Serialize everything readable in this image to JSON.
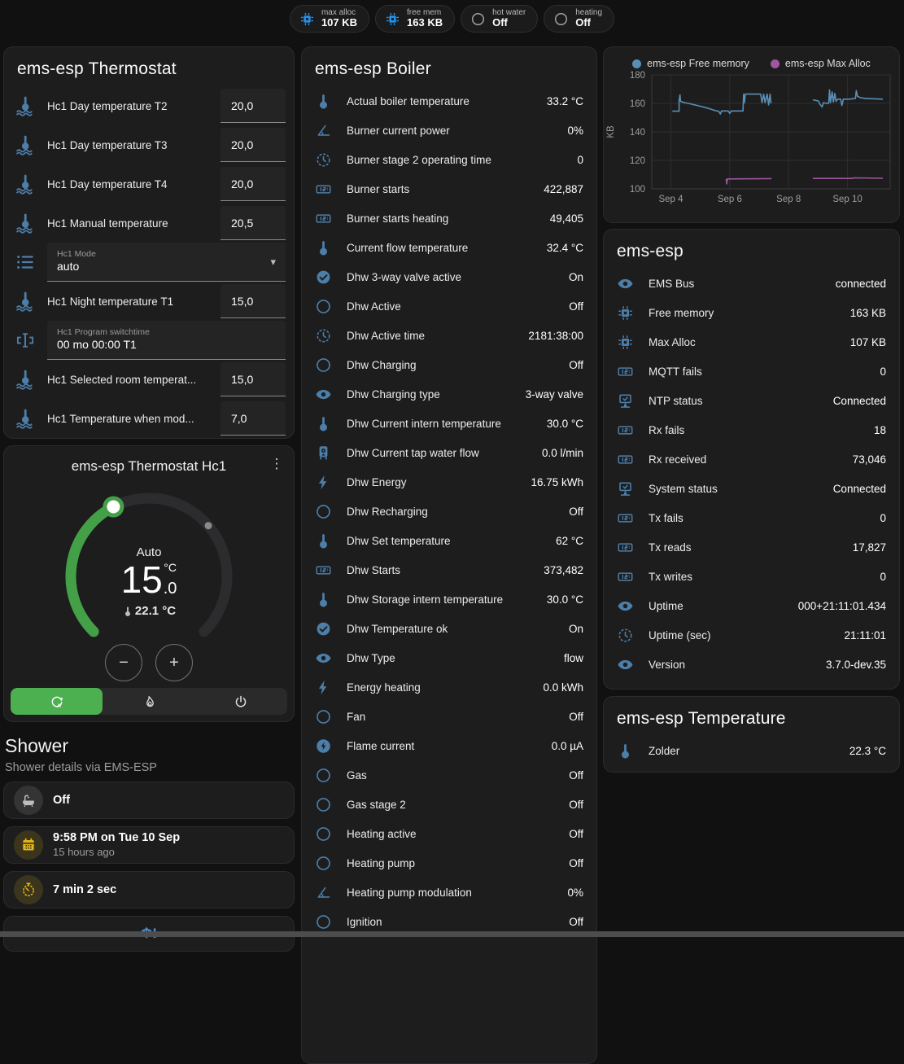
{
  "icons": {
    "kebab": "⋮",
    "caret": "▾",
    "minus": "−",
    "plus": "+",
    "snowflake_alert": "❄!"
  },
  "colors": {
    "accent_green": "#4caf50",
    "icon_blue": "#4d7ea8",
    "badge_blue": "#2196f3",
    "yellow": "#e0b517",
    "snow_blue": "#5596d8"
  },
  "badges": [
    {
      "label": "max alloc",
      "value": "107 KB",
      "icon": "chip",
      "color": "blue"
    },
    {
      "label": "free mem",
      "value": "163 KB",
      "icon": "chip",
      "color": "blue"
    },
    {
      "label": "hot water",
      "value": "Off",
      "icon": "circle",
      "color": "gray"
    },
    {
      "label": "heating",
      "value": "Off",
      "icon": "circle",
      "color": "gray"
    }
  ],
  "thermostat_card": {
    "title": "ems-esp Thermostat",
    "rows": [
      {
        "type": "number",
        "icon": "thermo-water",
        "label": "Hc1 Day temperature T2",
        "value": "20,0"
      },
      {
        "type": "number",
        "icon": "thermo-water",
        "label": "Hc1 Day temperature T3",
        "value": "20,0"
      },
      {
        "type": "number",
        "icon": "thermo-water",
        "label": "Hc1 Day temperature T4",
        "value": "20,0"
      },
      {
        "type": "number",
        "icon": "thermo-water",
        "label": "Hc1 Manual temperature",
        "value": "20,5"
      },
      {
        "type": "select",
        "icon": "list",
        "label": "Hc1 Mode",
        "value": "auto"
      },
      {
        "type": "number",
        "icon": "thermo-water",
        "label": "Hc1 Night temperature T1",
        "value": "15,0"
      },
      {
        "type": "text",
        "icon": "valve",
        "label": "Hc1 Program switchtime",
        "value": "00 mo 00:00 T1"
      },
      {
        "type": "number",
        "icon": "thermo-water",
        "label": "Hc1 Selected room temperat...",
        "value": "15,0"
      },
      {
        "type": "number",
        "icon": "thermo-water",
        "label": "Hc1 Temperature when mod...",
        "value": "7,0"
      }
    ]
  },
  "hc1_card": {
    "title": "ems-esp Thermostat Hc1",
    "mode_label": "Auto",
    "target_int": "15",
    "target_frac": ".0",
    "target_unit": "°C",
    "current": "22.1 °C",
    "modes": [
      {
        "icon": "auto",
        "active": true
      },
      {
        "icon": "flame",
        "active": false
      },
      {
        "icon": "power",
        "active": false
      }
    ]
  },
  "shower": {
    "title": "Shower",
    "subtitle": "Shower details via EMS-ESP",
    "tiles": [
      {
        "icon": "bathtub",
        "color": "gray",
        "primary": "Off"
      },
      {
        "icon": "calendar",
        "color": "yellow",
        "primary": "9:58 PM on Tue 10 Sep",
        "secondary": "15 hours ago"
      },
      {
        "icon": "timer",
        "color": "yellow",
        "primary": "7 min 2 sec"
      },
      {
        "icon": "snowflake-alert",
        "color": "blue",
        "centered": true
      }
    ]
  },
  "boiler_card": {
    "title": "ems-esp Boiler",
    "rows": [
      {
        "icon": "thermometer",
        "label": "Actual boiler temperature",
        "value": "33.2 °C"
      },
      {
        "icon": "angle",
        "label": "Burner current power",
        "value": "0%"
      },
      {
        "icon": "clock",
        "label": "Burner stage 2 operating time",
        "value": "0"
      },
      {
        "icon": "counter",
        "label": "Burner starts",
        "value": "422,887"
      },
      {
        "icon": "counter",
        "label": "Burner starts heating",
        "value": "49,405"
      },
      {
        "icon": "thermometer",
        "label": "Current flow temperature",
        "value": "32.4 °C"
      },
      {
        "icon": "check-circle",
        "label": "Dhw 3-way valve active",
        "value": "On"
      },
      {
        "icon": "circle",
        "label": "Dhw Active",
        "value": "Off"
      },
      {
        "icon": "clock",
        "label": "Dhw Active time",
        "value": "2181:38:00"
      },
      {
        "icon": "circle",
        "label": "Dhw Charging",
        "value": "Off"
      },
      {
        "icon": "eye",
        "label": "Dhw Charging type",
        "value": "3-way valve"
      },
      {
        "icon": "thermometer",
        "label": "Dhw Current intern temperature",
        "value": "30.0 °C"
      },
      {
        "icon": "water-boiler",
        "label": "Dhw Current tap water flow",
        "value": "0.0 l/min"
      },
      {
        "icon": "lightning",
        "label": "Dhw Energy",
        "value": "16.75 kWh"
      },
      {
        "icon": "circle",
        "label": "Dhw Recharging",
        "value": "Off"
      },
      {
        "icon": "thermometer",
        "label": "Dhw Set temperature",
        "value": "62 °C"
      },
      {
        "icon": "counter",
        "label": "Dhw Starts",
        "value": "373,482"
      },
      {
        "icon": "thermometer",
        "label": "Dhw Storage intern temperature",
        "value": "30.0 °C"
      },
      {
        "icon": "check-circle",
        "label": "Dhw Temperature ok",
        "value": "On"
      },
      {
        "icon": "eye",
        "label": "Dhw Type",
        "value": "flow"
      },
      {
        "icon": "lightning",
        "label": "Energy heating",
        "value": "0.0 kWh"
      },
      {
        "icon": "circle",
        "label": "Fan",
        "value": "Off"
      },
      {
        "icon": "lightning-circle",
        "label": "Flame current",
        "value": "0.0 µA"
      },
      {
        "icon": "circle",
        "label": "Gas",
        "value": "Off"
      },
      {
        "icon": "circle",
        "label": "Gas stage 2",
        "value": "Off"
      },
      {
        "icon": "circle",
        "label": "Heating active",
        "value": "Off"
      },
      {
        "icon": "circle",
        "label": "Heating pump",
        "value": "Off"
      },
      {
        "icon": "angle",
        "label": "Heating pump modulation",
        "value": "0%"
      },
      {
        "icon": "circle",
        "label": "Ignition",
        "value": "Off"
      }
    ]
  },
  "ems_card": {
    "title": "ems-esp",
    "rows": [
      {
        "icon": "eye",
        "label": "EMS Bus",
        "value": "connected"
      },
      {
        "icon": "chip",
        "label": "Free memory",
        "value": "163 KB"
      },
      {
        "icon": "chip",
        "label": "Max Alloc",
        "value": "107 KB"
      },
      {
        "icon": "counter",
        "label": "MQTT fails",
        "value": "0"
      },
      {
        "icon": "network",
        "label": "NTP status",
        "value": "Connected"
      },
      {
        "icon": "counter",
        "label": "Rx fails",
        "value": "18"
      },
      {
        "icon": "counter",
        "label": "Rx received",
        "value": "73,046"
      },
      {
        "icon": "network",
        "label": "System status",
        "value": "Connected"
      },
      {
        "icon": "counter",
        "label": "Tx fails",
        "value": "0"
      },
      {
        "icon": "counter",
        "label": "Tx reads",
        "value": "17,827"
      },
      {
        "icon": "counter",
        "label": "Tx writes",
        "value": "0"
      },
      {
        "icon": "eye",
        "label": "Uptime",
        "value": "000+21:11:01.434"
      },
      {
        "icon": "clock",
        "label": "Uptime (sec)",
        "value": "21:11:01"
      },
      {
        "icon": "eye",
        "label": "Version",
        "value": "3.7.0-dev.35"
      }
    ]
  },
  "temp_card": {
    "title": "ems-esp Temperature",
    "rows": [
      {
        "icon": "thermometer",
        "label": "Zolder",
        "value": "22.3 °C"
      }
    ]
  },
  "chart_data": {
    "type": "line",
    "ylabel": "KB",
    "ylim": [
      100,
      180
    ],
    "yticks": [
      100,
      120,
      140,
      160,
      180
    ],
    "xlim": [
      3.35,
      11.45
    ],
    "xticks": [
      {
        "x": 4,
        "label": "Sep 4"
      },
      {
        "x": 6,
        "label": "Sep 6"
      },
      {
        "x": 8,
        "label": "Sep 8"
      },
      {
        "x": 10,
        "label": "Sep 10"
      }
    ],
    "legend_position": "top",
    "grid": true,
    "series": [
      {
        "name": "ems-esp Free memory",
        "color": "#5a8fb5",
        "segments": [
          [
            [
              4.05,
              154.5
            ],
            [
              4.28,
              154.5
            ],
            [
              4.28,
              162
            ],
            [
              4.31,
              166
            ],
            [
              4.33,
              161.5
            ],
            [
              4.45,
              160.5
            ],
            [
              4.6,
              160
            ],
            [
              4.8,
              159
            ],
            [
              5.0,
              158
            ],
            [
              5.2,
              157
            ],
            [
              5.35,
              156
            ],
            [
              5.5,
              155
            ],
            [
              5.62,
              154.5
            ],
            [
              5.68,
              152.5
            ],
            [
              5.72,
              154.7
            ],
            [
              5.95,
              154.7
            ],
            [
              6.0,
              153
            ],
            [
              6.05,
              154.7
            ],
            [
              6.45,
              154.7
            ],
            [
              6.47,
              166.5
            ],
            [
              6.5,
              160.5
            ],
            [
              6.53,
              166.5
            ],
            [
              7.05,
              166.5
            ],
            [
              7.1,
              160.5
            ],
            [
              7.15,
              166.5
            ],
            [
              7.2,
              160.5
            ],
            [
              7.27,
              166.5
            ],
            [
              7.32,
              159
            ],
            [
              7.37,
              166.5
            ],
            [
              7.4,
              160
            ]
          ],
          [
            [
              8.82,
              162.5
            ],
            [
              8.95,
              162
            ],
            [
              9.02,
              161.5
            ],
            [
              9.06,
              159.5
            ],
            [
              9.1,
              158.5
            ],
            [
              9.14,
              157.5
            ],
            [
              9.18,
              160.5
            ],
            [
              9.3,
              160
            ],
            [
              9.36,
              160
            ],
            [
              9.39,
              169.5
            ],
            [
              9.42,
              160.5
            ],
            [
              9.48,
              168
            ],
            [
              9.52,
              161
            ],
            [
              9.57,
              167
            ],
            [
              9.61,
              161.5
            ],
            [
              9.67,
              163
            ],
            [
              9.77,
              163
            ],
            [
              9.81,
              158.5
            ],
            [
              9.86,
              163
            ],
            [
              10.05,
              163
            ],
            [
              10.27,
              163.5
            ],
            [
              10.3,
              169
            ],
            [
              10.34,
              165
            ],
            [
              10.44,
              164
            ],
            [
              10.6,
              163.5
            ],
            [
              11.2,
              163
            ]
          ]
        ]
      },
      {
        "name": "ems-esp Max Alloc",
        "color": "#9e57a0",
        "segments": [
          [
            [
              5.88,
              107
            ],
            [
              5.9,
              103.5
            ],
            [
              5.92,
              107
            ],
            [
              7.42,
              107.2
            ]
          ],
          [
            [
              8.82,
              107.3
            ],
            [
              10.15,
              107.3
            ],
            [
              10.2,
              107.7
            ],
            [
              11.2,
              107.4
            ]
          ]
        ]
      }
    ]
  }
}
